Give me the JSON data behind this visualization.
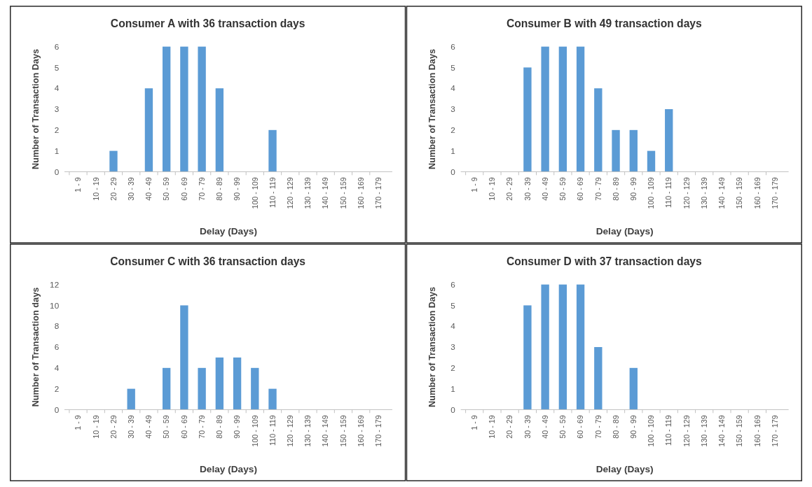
{
  "chart_data": [
    {
      "type": "bar",
      "title": "Consumer A with 36 transaction days",
      "xlabel": "Delay (Days)",
      "ylabel": "Number of Transaction Days",
      "categories": [
        "1 - 9",
        "10 - 19",
        "20 - 29",
        "30 - 39",
        "40 - 49",
        "50 - 59",
        "60 - 69",
        "70 - 79",
        "80 - 89",
        "90 - 99",
        "100 - 109",
        "110 - 119",
        "120 - 129",
        "130 - 139",
        "140 - 149",
        "150 - 159",
        "160 - 169",
        "170 - 179"
      ],
      "values": [
        0,
        0,
        1,
        0,
        4,
        6,
        6,
        6,
        4,
        0,
        0,
        2,
        0,
        0,
        0,
        0,
        0,
        0
      ],
      "color": "#5b9bd5",
      "ylim": [
        0,
        6
      ],
      "yticks": [
        0,
        1,
        2,
        3,
        4,
        5,
        6
      ],
      "grid": false
    },
    {
      "type": "bar",
      "title": "Consumer B with 49 transaction days",
      "xlabel": "Delay (Days)",
      "ylabel": "Number of Transaction Days",
      "categories": [
        "1 - 9",
        "10 - 19",
        "20 - 29",
        "30 - 39",
        "40 - 49",
        "50 - 59",
        "60 - 69",
        "70 - 79",
        "80 - 89",
        "90 - 99",
        "100 - 109",
        "110 - 119",
        "120 - 129",
        "130 - 139",
        "140 - 149",
        "150 - 159",
        "160 - 169",
        "170 - 179"
      ],
      "values": [
        0,
        0,
        0,
        5,
        6,
        6,
        6,
        4,
        2,
        2,
        1,
        3,
        0,
        0,
        0,
        0,
        0,
        0
      ],
      "color": "#5b9bd5",
      "ylim": [
        0,
        6
      ],
      "yticks": [
        0,
        1,
        2,
        3,
        4,
        5,
        6
      ],
      "grid": false
    },
    {
      "type": "bar",
      "title": "Consumer C with 36 transaction days",
      "xlabel": "Delay (Days)",
      "ylabel": "Number of Transaction days",
      "categories": [
        "1 - 9",
        "10 - 19",
        "20 - 29",
        "30 - 39",
        "40 - 49",
        "50 - 59",
        "60 - 69",
        "70 - 79",
        "80 - 89",
        "90 - 99",
        "100 - 109",
        "110 - 119",
        "120 - 129",
        "130 - 139",
        "140 - 149",
        "150 - 159",
        "160 - 169",
        "170 - 179"
      ],
      "values": [
        0,
        0,
        0,
        2,
        0,
        4,
        10,
        4,
        5,
        5,
        4,
        2,
        0,
        0,
        0,
        0,
        0,
        0
      ],
      "color": "#5b9bd5",
      "ylim": [
        0,
        12
      ],
      "yticks": [
        0,
        2,
        4,
        6,
        8,
        10,
        12
      ],
      "grid": false
    },
    {
      "type": "bar",
      "title": "Consumer D with 37 transaction days",
      "xlabel": "Delay (Days)",
      "ylabel": "Number of Transaction Days",
      "categories": [
        "1 - 9",
        "10 - 19",
        "20 - 29",
        "30 - 39",
        "40 - 49",
        "50 - 59",
        "60 - 69",
        "70 - 79",
        "80 - 89",
        "90 - 99",
        "100 - 109",
        "110 - 119",
        "120 - 129",
        "130 - 139",
        "140 - 149",
        "150 - 159",
        "160 - 169",
        "170 - 179"
      ],
      "values": [
        0,
        0,
        0,
        5,
        6,
        6,
        6,
        3,
        0,
        2,
        0,
        0,
        0,
        0,
        0,
        0,
        0,
        0
      ],
      "color": "#5b9bd5",
      "ylim": [
        0,
        6
      ],
      "yticks": [
        0,
        1,
        2,
        3,
        4,
        5,
        6
      ],
      "grid": false
    }
  ]
}
